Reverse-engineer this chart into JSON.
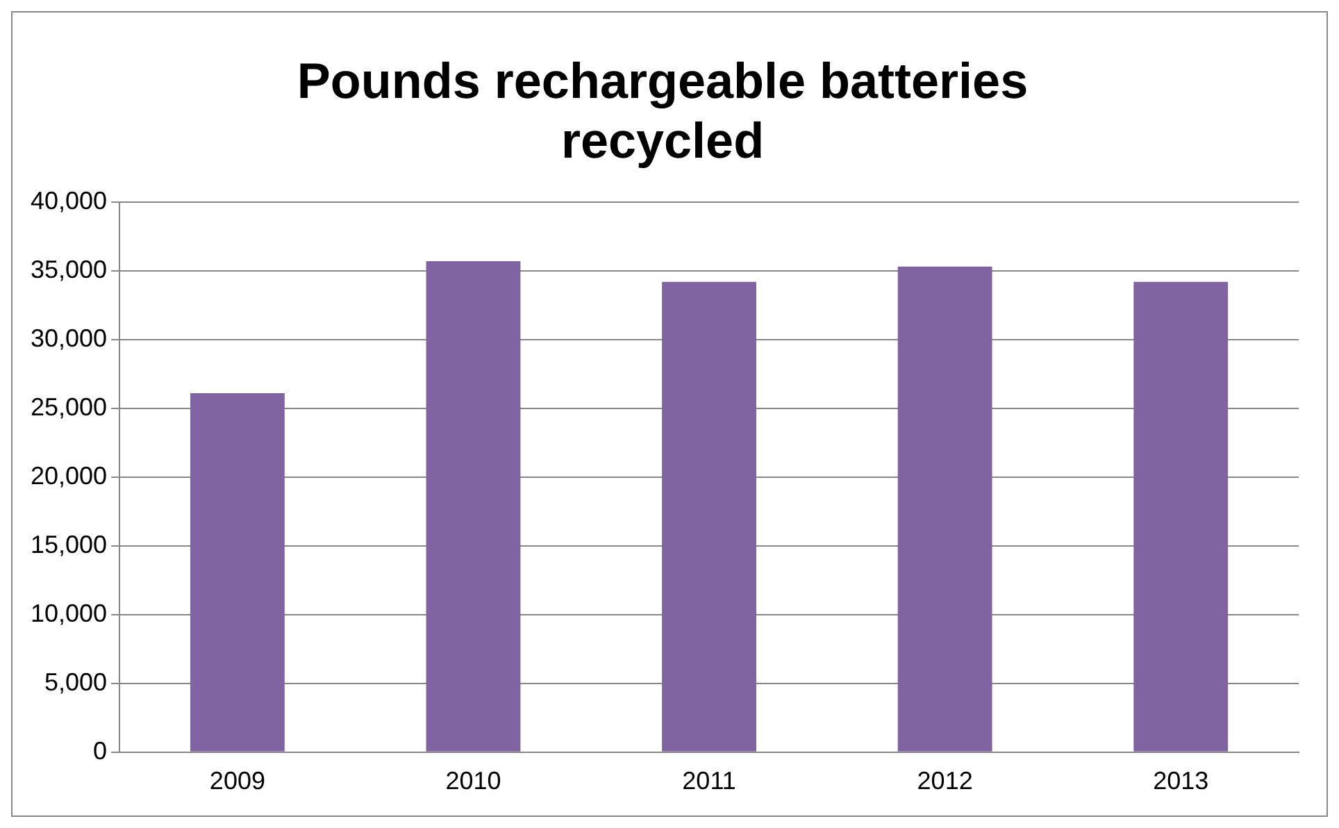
{
  "chart_data": {
    "type": "bar",
    "title": "Pounds rechargeable batteries recycled",
    "categories": [
      "2009",
      "2010",
      "2011",
      "2012",
      "2013"
    ],
    "values": [
      26100,
      35700,
      34200,
      35300,
      34200
    ],
    "color": "#8064a2",
    "ylim": [
      0,
      40000
    ],
    "yticks": [
      0,
      {
        "value": 5000,
        "label": "5,000"
      },
      {
        "value": 10000,
        "label": "10,000"
      },
      {
        "value": 15000,
        "label": "15,000"
      },
      {
        "value": 20000,
        "label": "20,000"
      },
      {
        "value": 25000,
        "label": "25,000"
      },
      {
        "value": 30000,
        "label": "30,000"
      },
      {
        "value": 35000,
        "label": "35,000"
      },
      {
        "value": 40000,
        "label": "40,000"
      }
    ],
    "grid": "y",
    "legend": false
  }
}
